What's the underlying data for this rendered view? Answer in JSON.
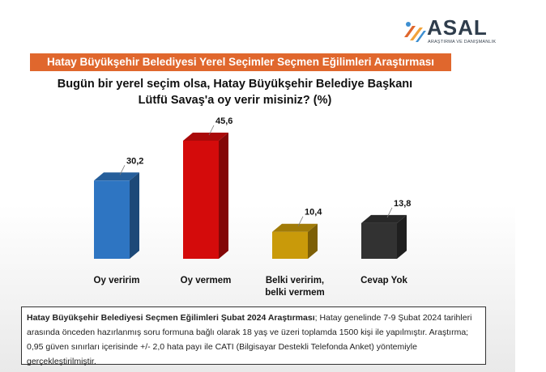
{
  "logo": {
    "word": "ASAL",
    "subtitle": "ARAŞTIRMA VE DANIŞMANLIK",
    "colors": [
      "#e0672d",
      "#f2a33a",
      "#3d8fd1",
      "#2f3d4c"
    ]
  },
  "banner": {
    "text": "Hatay Büyükşehir Belediyesi Yerel Seçimler Seçmen Eğilimleri Araştırması",
    "color": "#e0672d"
  },
  "question": {
    "line1": "Bugün bir yerel seçim olsa, Hatay Büyükşehir Belediye Başkanı",
    "line2": "Lütfü Savaş'a oy verir misiniz? (%)"
  },
  "chart_data": {
    "type": "bar",
    "title": "Bugün bir yerel seçim olsa, Hatay Büyükşehir Belediye Başkanı Lütfü Savaş'a oy verir misiniz? (%)",
    "categories": [
      "Oy veririm",
      "Oy vermem",
      "Belki veririm, belki vermem",
      "Cevap Yok"
    ],
    "category_lines": [
      [
        "Oy veririm"
      ],
      [
        "Oy vermem"
      ],
      [
        "Belki veririm,",
        "belki vermem"
      ],
      [
        "Cevap Yok"
      ]
    ],
    "values": [
      30.2,
      45.6,
      10.4,
      13.8
    ],
    "labels": [
      "30,2",
      "45,6",
      "10,4",
      "13,8"
    ],
    "colors": [
      "#2e75c2",
      "#d40b0b",
      "#c99a0a",
      "#323232"
    ],
    "style": "3d-bar",
    "grid": false,
    "legend": "none"
  },
  "note": {
    "lead": "Hatay Büyükşehir Belediyesi Seçmen Eğilimleri Şubat 2024 Araştırması",
    "text": "; Hatay genelinde 7-9 Şubat 2024 tarihleri arasında önceden hazırlanmış soru formuna bağlı olarak 18 yaş ve üzeri toplamda 1500 kişi ile yapılmıştır. Araştırma; 0,95 güven sınırları içerisinde +/- 2,0 hata payı ile CATI (Bilgisayar Destekli Telefonda Anket) yöntemiyle gerçekleştirilmiştir."
  }
}
